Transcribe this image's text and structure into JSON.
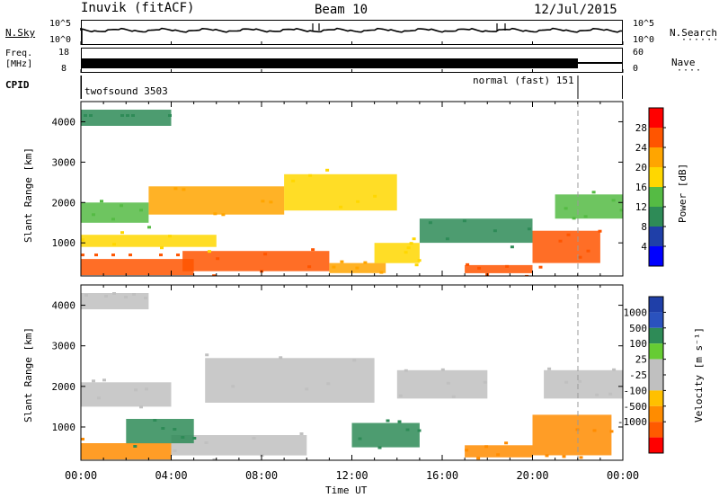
{
  "header": {
    "station": "Inuvik (fitACF)",
    "beam": "Beam 10",
    "date": "12/Jul/2015"
  },
  "top_panels": {
    "nsky_label": "N.Sky",
    "nsky_ticks": [
      "10^5",
      "10^0"
    ],
    "nsearch_label": "N.Search",
    "freq_label_1": "Freq.",
    "freq_label_2": "[MHz]",
    "freq_ticks": [
      "18",
      "8"
    ],
    "nave_label": "Nave",
    "nave_ticks": [
      "60",
      "0"
    ],
    "cpid_label": "CPID",
    "cpid_modes": [
      "twofsound 3503",
      "normal (fast) 151"
    ]
  },
  "colors": {
    "power_scale": [
      "#0000ff",
      "#1f3fa8",
      "#2e8b57",
      "#55bb44",
      "#ffd700",
      "#ffa500",
      "#ff5500",
      "#ff0000"
    ],
    "velocity_scale": [
      "#ff0000",
      "#ff5a00",
      "#ff8c00",
      "#ffc000",
      "#c0c0c0",
      "#c0c0c0",
      "#66cc33",
      "#2e8b57",
      "#2a52be",
      "#1f3fa8"
    ]
  },
  "chart_data": [
    {
      "type": "heatmap",
      "name": "power",
      "ylabel": "Slant Range [km]",
      "yticks": [
        "4000",
        "3000",
        "2000",
        "1000"
      ],
      "colorbar_label": "Power [dB]",
      "colorbar_ticks": [
        "28",
        "24",
        "20",
        "16",
        "12",
        "8",
        "4"
      ],
      "colorbar_range": [
        0,
        32
      ],
      "ylim": [
        180,
        4500
      ],
      "xlim": [
        0,
        24
      ],
      "regions": [
        {
          "t0": 0.0,
          "t1": 5.0,
          "r0": 200,
          "r1": 600,
          "v": 27
        },
        {
          "t0": 4.5,
          "t1": 11.0,
          "r0": 300,
          "r1": 800,
          "v": 25
        },
        {
          "t0": 11.0,
          "t1": 13.5,
          "r0": 250,
          "r1": 500,
          "v": 20
        },
        {
          "t0": 17.0,
          "t1": 20.0,
          "r0": 250,
          "r1": 450,
          "v": 24
        },
        {
          "t0": 20.0,
          "t1": 23.0,
          "r0": 500,
          "r1": 1300,
          "v": 25
        },
        {
          "t0": 0.0,
          "t1": 6.0,
          "r0": 900,
          "r1": 1200,
          "v": 18
        },
        {
          "t0": 3.0,
          "t1": 9.0,
          "r0": 1700,
          "r1": 2400,
          "v": 20
        },
        {
          "t0": 0.0,
          "t1": 3.0,
          "r0": 1500,
          "r1": 2000,
          "v": 15
        },
        {
          "t0": 9.0,
          "t1": 14.0,
          "r0": 1800,
          "r1": 2700,
          "v": 17
        },
        {
          "t0": 13.0,
          "t1": 15.0,
          "r0": 500,
          "r1": 1000,
          "v": 19
        },
        {
          "t0": 15.0,
          "t1": 20.0,
          "r0": 1000,
          "r1": 1600,
          "v": 11
        },
        {
          "t0": 21.0,
          "t1": 24.0,
          "r0": 1600,
          "r1": 2200,
          "v": 13
        },
        {
          "t0": 0.0,
          "t1": 4.0,
          "r0": 3900,
          "r1": 4300,
          "v": 9
        }
      ]
    },
    {
      "type": "heatmap",
      "name": "velocity",
      "xlabel": "Time UT",
      "ylabel": "Slant Range [km]",
      "yticks": [
        "4000",
        "3000",
        "2000",
        "1000"
      ],
      "xticks": [
        "00:00",
        "04:00",
        "08:00",
        "12:00",
        "16:00",
        "20:00",
        "00:00"
      ],
      "colorbar_label": "Velocity [m s⁻¹]",
      "colorbar_ticks": [
        "1000",
        "500",
        "100",
        "25",
        "-25",
        "-100",
        "-500",
        "-1000"
      ],
      "ylim": [
        180,
        4500
      ],
      "xlim": [
        0,
        24
      ],
      "regions": [
        {
          "t0": 0.0,
          "t1": 4.0,
          "r0": 200,
          "r1": 600,
          "v": -300
        },
        {
          "t0": 4.0,
          "t1": 10.0,
          "r0": 300,
          "r1": 800,
          "v": 15
        },
        {
          "t0": 2.0,
          "t1": 5.0,
          "r0": 600,
          "r1": 1200,
          "v": 200
        },
        {
          "t0": 5.5,
          "t1": 13.0,
          "r0": 1600,
          "r1": 2700,
          "v": 0
        },
        {
          "t0": 12.0,
          "t1": 15.0,
          "r0": 500,
          "r1": 1100,
          "v": 300
        },
        {
          "t0": 17.0,
          "t1": 20.0,
          "r0": 250,
          "r1": 550,
          "v": -300
        },
        {
          "t0": 20.0,
          "t1": 23.5,
          "r0": 300,
          "r1": 1300,
          "v": -400
        },
        {
          "t0": 0.0,
          "t1": 4.0,
          "r0": 1500,
          "r1": 2100,
          "v": 0
        },
        {
          "t0": 14.0,
          "t1": 18.0,
          "r0": 1700,
          "r1": 2400,
          "v": 10
        },
        {
          "t0": 20.5,
          "t1": 24.0,
          "r0": 1700,
          "r1": 2400,
          "v": 5
        },
        {
          "t0": 0.0,
          "t1": 3.0,
          "r0": 3900,
          "r1": 4300,
          "v": 0
        }
      ]
    }
  ]
}
